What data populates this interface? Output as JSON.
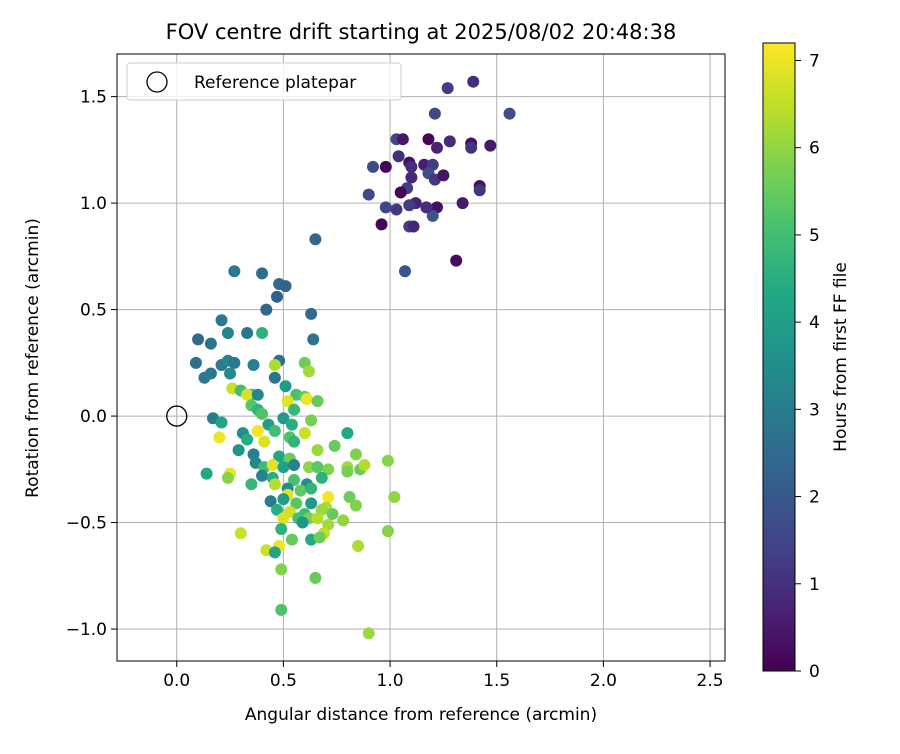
{
  "chart_data": {
    "type": "scatter",
    "title": "FOV centre drift starting at 2025/08/02 20:48:38",
    "xlabel": "Angular distance from reference (arcmin)",
    "ylabel": "Rotation from reference (arcmin)",
    "xlim": [
      -0.28,
      2.57
    ],
    "ylim": [
      -1.15,
      1.7
    ],
    "xticks": [
      0.0,
      0.5,
      1.0,
      1.5,
      2.0,
      2.5
    ],
    "xtick_labels": [
      "0.0",
      "0.5",
      "1.0",
      "1.5",
      "2.0",
      "2.5"
    ],
    "yticks": [
      -1.0,
      -0.5,
      0.0,
      0.5,
      1.0,
      1.5
    ],
    "ytick_labels": [
      "−1.0",
      "−0.5",
      "0.0",
      "0.5",
      "1.0",
      "1.5"
    ],
    "grid": true,
    "legend": {
      "placement": "top-left",
      "entries": [
        {
          "label": "Reference platepar",
          "marker": "open-circle"
        }
      ]
    },
    "reference_point": {
      "x": 0.0,
      "y": 0.0
    },
    "colorbar": {
      "label": "Hours from first FF file",
      "range": [
        0,
        7.2
      ],
      "ticks": [
        0,
        1,
        2,
        3,
        4,
        5,
        6,
        7
      ],
      "colormap": "viridis"
    },
    "series": [
      {
        "points": [
          {
            "x": 1.39,
            "y": 1.57,
            "c": 0.9
          },
          {
            "x": 1.27,
            "y": 1.54,
            "c": 1.3
          },
          {
            "x": 1.21,
            "y": 1.42,
            "c": 1.6
          },
          {
            "x": 1.56,
            "y": 1.42,
            "c": 1.7
          },
          {
            "x": 1.03,
            "y": 1.3,
            "c": 1.5
          },
          {
            "x": 1.06,
            "y": 1.3,
            "c": 0.5
          },
          {
            "x": 1.18,
            "y": 1.3,
            "c": 0.1
          },
          {
            "x": 1.28,
            "y": 1.29,
            "c": 0.9
          },
          {
            "x": 1.38,
            "y": 1.28,
            "c": 0.3
          },
          {
            "x": 1.38,
            "y": 1.26,
            "c": 1.1
          },
          {
            "x": 1.47,
            "y": 1.27,
            "c": 0.5
          },
          {
            "x": 1.22,
            "y": 1.26,
            "c": 0.7
          },
          {
            "x": 1.04,
            "y": 1.22,
            "c": 1.0
          },
          {
            "x": 1.09,
            "y": 1.19,
            "c": 0.3
          },
          {
            "x": 1.16,
            "y": 1.18,
            "c": 0.6
          },
          {
            "x": 0.98,
            "y": 1.17,
            "c": 0.1
          },
          {
            "x": 0.92,
            "y": 1.17,
            "c": 1.6
          },
          {
            "x": 1.1,
            "y": 1.17,
            "c": 0.9
          },
          {
            "x": 1.2,
            "y": 1.18,
            "c": 1.3
          },
          {
            "x": 1.18,
            "y": 1.14,
            "c": 1.7
          },
          {
            "x": 1.21,
            "y": 1.11,
            "c": 1.2
          },
          {
            "x": 1.1,
            "y": 1.12,
            "c": 0.8
          },
          {
            "x": 1.25,
            "y": 1.13,
            "c": 0.4
          },
          {
            "x": 1.42,
            "y": 1.08,
            "c": 0.3
          },
          {
            "x": 1.42,
            "y": 1.06,
            "c": 1.1
          },
          {
            "x": 1.08,
            "y": 1.07,
            "c": 1.3
          },
          {
            "x": 1.05,
            "y": 1.05,
            "c": 0.1
          },
          {
            "x": 0.9,
            "y": 1.04,
            "c": 1.6
          },
          {
            "x": 1.34,
            "y": 1.0,
            "c": 0.5
          },
          {
            "x": 1.12,
            "y": 1.0,
            "c": 0.7
          },
          {
            "x": 1.09,
            "y": 0.99,
            "c": 1.3
          },
          {
            "x": 1.22,
            "y": 0.98,
            "c": 0.3
          },
          {
            "x": 0.98,
            "y": 0.98,
            "c": 1.5
          },
          {
            "x": 1.03,
            "y": 0.97,
            "c": 1.2
          },
          {
            "x": 1.2,
            "y": 0.94,
            "c": 1.8
          },
          {
            "x": 1.17,
            "y": 0.98,
            "c": 0.9
          },
          {
            "x": 0.96,
            "y": 0.9,
            "c": 0.1
          },
          {
            "x": 1.09,
            "y": 0.89,
            "c": 1.4
          },
          {
            "x": 1.11,
            "y": 0.89,
            "c": 0.8
          },
          {
            "x": 1.31,
            "y": 0.73,
            "c": 0.2
          },
          {
            "x": 1.07,
            "y": 0.68,
            "c": 1.9
          },
          {
            "x": 0.65,
            "y": 0.83,
            "c": 2.4
          },
          {
            "x": 0.27,
            "y": 0.68,
            "c": 2.9
          },
          {
            "x": 0.4,
            "y": 0.67,
            "c": 2.6
          },
          {
            "x": 0.48,
            "y": 0.62,
            "c": 2.5
          },
          {
            "x": 0.51,
            "y": 0.61,
            "c": 2.3
          },
          {
            "x": 0.47,
            "y": 0.56,
            "c": 2.2
          },
          {
            "x": 0.42,
            "y": 0.5,
            "c": 2.4
          },
          {
            "x": 0.63,
            "y": 0.48,
            "c": 2.5
          },
          {
            "x": 0.21,
            "y": 0.45,
            "c": 2.9
          },
          {
            "x": 0.24,
            "y": 0.39,
            "c": 3.2
          },
          {
            "x": 0.33,
            "y": 0.39,
            "c": 2.8
          },
          {
            "x": 0.64,
            "y": 0.36,
            "c": 2.7
          },
          {
            "x": 0.4,
            "y": 0.39,
            "c": 4.6
          },
          {
            "x": 0.1,
            "y": 0.36,
            "c": 2.5
          },
          {
            "x": 0.16,
            "y": 0.34,
            "c": 2.7
          },
          {
            "x": 0.09,
            "y": 0.25,
            "c": 2.6
          },
          {
            "x": 0.21,
            "y": 0.24,
            "c": 3.0
          },
          {
            "x": 0.24,
            "y": 0.26,
            "c": 3.3
          },
          {
            "x": 0.27,
            "y": 0.25,
            "c": 2.9
          },
          {
            "x": 0.36,
            "y": 0.24,
            "c": 3.1
          },
          {
            "x": 0.48,
            "y": 0.26,
            "c": 2.6
          },
          {
            "x": 0.6,
            "y": 0.25,
            "c": 5.6
          },
          {
            "x": 0.46,
            "y": 0.24,
            "c": 6.3
          },
          {
            "x": 0.62,
            "y": 0.21,
            "c": 6.2
          },
          {
            "x": 0.16,
            "y": 0.2,
            "c": 2.8
          },
          {
            "x": 0.13,
            "y": 0.18,
            "c": 2.9
          },
          {
            "x": 0.25,
            "y": 0.2,
            "c": 3.4
          },
          {
            "x": 0.46,
            "y": 0.18,
            "c": 2.7
          },
          {
            "x": 0.26,
            "y": 0.13,
            "c": 6.6
          },
          {
            "x": 0.51,
            "y": 0.14,
            "c": 3.9
          },
          {
            "x": 0.3,
            "y": 0.12,
            "c": 5.0
          },
          {
            "x": 0.35,
            "y": 0.1,
            "c": 4.9
          },
          {
            "x": 0.33,
            "y": 0.1,
            "c": 6.8
          },
          {
            "x": 0.38,
            "y": 0.1,
            "c": 3.3
          },
          {
            "x": 0.56,
            "y": 0.1,
            "c": 5.1
          },
          {
            "x": 0.6,
            "y": 0.09,
            "c": 5.4
          },
          {
            "x": 0.61,
            "y": 0.08,
            "c": 7.0
          },
          {
            "x": 0.52,
            "y": 0.07,
            "c": 6.9
          },
          {
            "x": 0.66,
            "y": 0.07,
            "c": 5.5
          },
          {
            "x": 0.35,
            "y": 0.05,
            "c": 5.3
          },
          {
            "x": 0.38,
            "y": 0.03,
            "c": 4.7
          },
          {
            "x": 0.55,
            "y": 0.03,
            "c": 4.8
          },
          {
            "x": 0.4,
            "y": 0.01,
            "c": 5.2
          },
          {
            "x": 0.17,
            "y": -0.01,
            "c": 3.0
          },
          {
            "x": 0.5,
            "y": -0.01,
            "c": 3.9
          },
          {
            "x": 0.21,
            "y": -0.03,
            "c": 4.2
          },
          {
            "x": 0.43,
            "y": -0.04,
            "c": 4.0
          },
          {
            "x": 0.63,
            "y": -0.02,
            "c": 5.7
          },
          {
            "x": 0.54,
            "y": -0.04,
            "c": 4.5
          },
          {
            "x": 0.6,
            "y": -0.08,
            "c": 6.6
          },
          {
            "x": 0.31,
            "y": -0.08,
            "c": 3.5
          },
          {
            "x": 0.38,
            "y": -0.07,
            "c": 7.1
          },
          {
            "x": 0.46,
            "y": -0.07,
            "c": 5.0
          },
          {
            "x": 0.8,
            "y": -0.08,
            "c": 4.3
          },
          {
            "x": 0.2,
            "y": -0.1,
            "c": 7.0
          },
          {
            "x": 0.33,
            "y": -0.11,
            "c": 4.4
          },
          {
            "x": 0.41,
            "y": -0.12,
            "c": 6.8
          },
          {
            "x": 0.53,
            "y": -0.1,
            "c": 5.2
          },
          {
            "x": 0.55,
            "y": -0.12,
            "c": 4.7
          },
          {
            "x": 0.74,
            "y": -0.14,
            "c": 5.5
          },
          {
            "x": 0.29,
            "y": -0.16,
            "c": 3.7
          },
          {
            "x": 0.66,
            "y": -0.16,
            "c": 6.1
          },
          {
            "x": 0.84,
            "y": -0.18,
            "c": 5.8
          },
          {
            "x": 0.36,
            "y": -0.18,
            "c": 3.1
          },
          {
            "x": 0.48,
            "y": -0.19,
            "c": 4.3
          },
          {
            "x": 0.53,
            "y": -0.2,
            "c": 5.6
          },
          {
            "x": 0.99,
            "y": -0.21,
            "c": 5.9
          },
          {
            "x": 0.37,
            "y": -0.22,
            "c": 3.3
          },
          {
            "x": 0.41,
            "y": -0.24,
            "c": 4.9
          },
          {
            "x": 0.45,
            "y": -0.23,
            "c": 6.9
          },
          {
            "x": 0.5,
            "y": -0.24,
            "c": 4.1
          },
          {
            "x": 0.55,
            "y": -0.23,
            "c": 3.2
          },
          {
            "x": 0.62,
            "y": -0.24,
            "c": 6.0
          },
          {
            "x": 0.66,
            "y": -0.24,
            "c": 5.3
          },
          {
            "x": 0.71,
            "y": -0.25,
            "c": 5.8
          },
          {
            "x": 0.8,
            "y": -0.24,
            "c": 6.2
          },
          {
            "x": 0.8,
            "y": -0.26,
            "c": 5.7
          },
          {
            "x": 0.86,
            "y": -0.25,
            "c": 5.5
          },
          {
            "x": 0.88,
            "y": -0.23,
            "c": 6.4
          },
          {
            "x": 0.14,
            "y": -0.27,
            "c": 4.3
          },
          {
            "x": 0.25,
            "y": -0.27,
            "c": 7.0
          },
          {
            "x": 0.24,
            "y": -0.29,
            "c": 5.9
          },
          {
            "x": 0.4,
            "y": -0.28,
            "c": 3.2
          },
          {
            "x": 0.45,
            "y": -0.29,
            "c": 4.4
          },
          {
            "x": 0.55,
            "y": -0.3,
            "c": 5.1
          },
          {
            "x": 0.61,
            "y": -0.32,
            "c": 3.6
          },
          {
            "x": 0.68,
            "y": -0.29,
            "c": 4.6
          },
          {
            "x": 0.35,
            "y": -0.32,
            "c": 4.8
          },
          {
            "x": 0.46,
            "y": -0.32,
            "c": 6.4
          },
          {
            "x": 0.52,
            "y": -0.34,
            "c": 3.5
          },
          {
            "x": 0.58,
            "y": -0.35,
            "c": 5.4
          },
          {
            "x": 0.63,
            "y": -0.34,
            "c": 4.7
          },
          {
            "x": 0.52,
            "y": -0.37,
            "c": 6.9
          },
          {
            "x": 0.71,
            "y": -0.38,
            "c": 7.1
          },
          {
            "x": 0.81,
            "y": -0.38,
            "c": 5.6
          },
          {
            "x": 1.02,
            "y": -0.38,
            "c": 6.0
          },
          {
            "x": 0.44,
            "y": -0.4,
            "c": 3.0
          },
          {
            "x": 0.5,
            "y": -0.39,
            "c": 4.0
          },
          {
            "x": 0.56,
            "y": -0.41,
            "c": 5.3
          },
          {
            "x": 0.63,
            "y": -0.41,
            "c": 3.9
          },
          {
            "x": 0.7,
            "y": -0.43,
            "c": 6.3
          },
          {
            "x": 0.84,
            "y": -0.42,
            "c": 5.8
          },
          {
            "x": 0.47,
            "y": -0.44,
            "c": 4.5
          },
          {
            "x": 0.53,
            "y": -0.45,
            "c": 6.7
          },
          {
            "x": 0.6,
            "y": -0.46,
            "c": 4.9
          },
          {
            "x": 0.68,
            "y": -0.44,
            "c": 6.1
          },
          {
            "x": 0.73,
            "y": -0.46,
            "c": 5.5
          },
          {
            "x": 0.5,
            "y": -0.48,
            "c": 6.8
          },
          {
            "x": 0.57,
            "y": -0.48,
            "c": 5.0
          },
          {
            "x": 0.62,
            "y": -0.48,
            "c": 5.7
          },
          {
            "x": 0.66,
            "y": -0.48,
            "c": 6.4
          },
          {
            "x": 0.78,
            "y": -0.49,
            "c": 6.0
          },
          {
            "x": 0.59,
            "y": -0.5,
            "c": 3.8
          },
          {
            "x": 0.71,
            "y": -0.51,
            "c": 6.2
          },
          {
            "x": 0.49,
            "y": -0.53,
            "c": 4.6
          },
          {
            "x": 0.99,
            "y": -0.54,
            "c": 5.9
          },
          {
            "x": 0.3,
            "y": -0.55,
            "c": 6.6
          },
          {
            "x": 0.69,
            "y": -0.55,
            "c": 6.5
          },
          {
            "x": 0.54,
            "y": -0.58,
            "c": 5.5
          },
          {
            "x": 0.63,
            "y": -0.58,
            "c": 4.4
          },
          {
            "x": 0.67,
            "y": -0.57,
            "c": 5.6
          },
          {
            "x": 0.85,
            "y": -0.61,
            "c": 6.3
          },
          {
            "x": 0.42,
            "y": -0.63,
            "c": 6.6
          },
          {
            "x": 0.48,
            "y": -0.61,
            "c": 7.0
          },
          {
            "x": 0.46,
            "y": -0.64,
            "c": 4.2
          },
          {
            "x": 0.49,
            "y": -0.72,
            "c": 5.8
          },
          {
            "x": 0.65,
            "y": -0.76,
            "c": 5.5
          },
          {
            "x": 0.49,
            "y": -0.91,
            "c": 5.2
          },
          {
            "x": 0.9,
            "y": -1.02,
            "c": 6.1
          }
        ]
      }
    ]
  }
}
